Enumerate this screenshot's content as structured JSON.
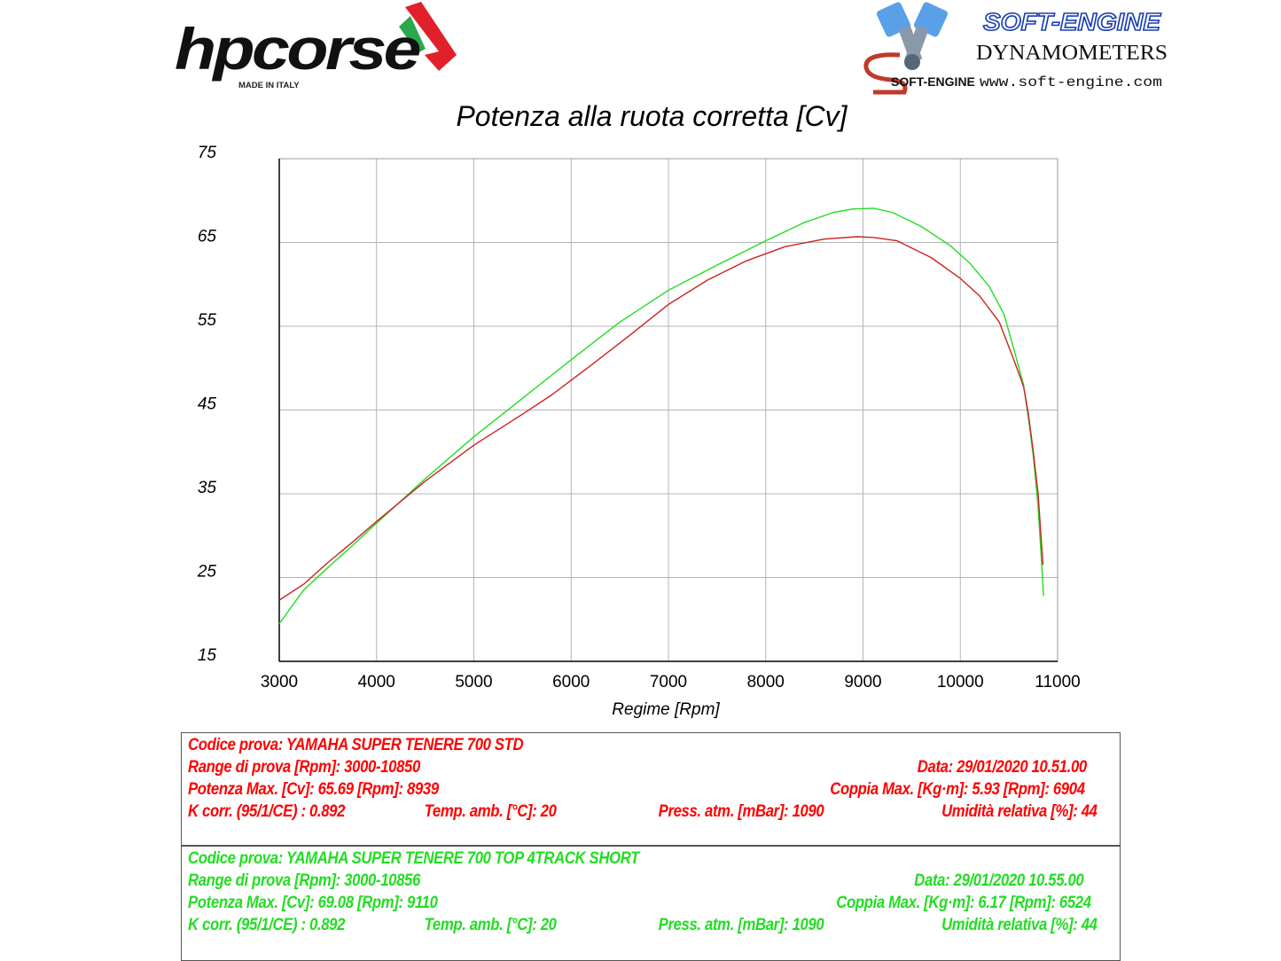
{
  "brand_left": {
    "name": "hpcorse",
    "tagline": "MADE IN ITALY"
  },
  "brand_right": {
    "name": "SOFT-ENGINE",
    "line": "DYNAMOMETERS",
    "mark": "SOFT-ENGINE",
    "url": "www.soft-engine.com"
  },
  "colors": {
    "std": "#cc2222",
    "top": "#22dd22",
    "grid": "#b4b4b4",
    "info_std": "#ff0000",
    "info_top": "#22dd22"
  },
  "chart_data": {
    "type": "line",
    "title": "Potenza alla ruota corretta [Cv]",
    "xlabel": "Regime [Rpm]",
    "ylabel": "",
    "xlim": [
      3000,
      11000
    ],
    "ylim": [
      15,
      75
    ],
    "x_ticks": [
      3000,
      4000,
      5000,
      6000,
      7000,
      8000,
      9000,
      10000,
      11000
    ],
    "y_ticks": [
      75,
      65,
      55,
      45,
      35,
      25,
      15
    ],
    "grid": true,
    "series": [
      {
        "key": "std",
        "x": [
          3000,
          3250,
          3500,
          3750,
          4000,
          4500,
          5000,
          5500,
          5800,
          6200,
          6600,
          7000,
          7400,
          7800,
          8200,
          8600,
          8939,
          9100,
          9350,
          9700,
          10000,
          10200,
          10400,
          10550,
          10650,
          10700,
          10750,
          10800,
          10850
        ],
        "y": [
          22.3,
          24.2,
          26.8,
          29.2,
          31.7,
          36.5,
          40.8,
          44.5,
          46.8,
          50.3,
          53.9,
          57.6,
          60.5,
          62.8,
          64.5,
          65.4,
          65.69,
          65.6,
          65.2,
          63.2,
          60.7,
          58.6,
          55.5,
          51.0,
          47.8,
          44.5,
          40.0,
          35.0,
          26.5
        ]
      },
      {
        "key": "top",
        "x": [
          3000,
          3250,
          3500,
          3750,
          4000,
          4500,
          5000,
          5500,
          6000,
          6500,
          7000,
          7500,
          8000,
          8400,
          8700,
          8900,
          9110,
          9300,
          9600,
          9900,
          10100,
          10300,
          10450,
          10550,
          10650,
          10700,
          10750,
          10800,
          10856
        ],
        "y": [
          19.5,
          23.5,
          26.2,
          28.8,
          31.5,
          36.8,
          41.8,
          46.4,
          51.0,
          55.5,
          59.3,
          62.3,
          65.2,
          67.4,
          68.6,
          69.0,
          69.08,
          68.6,
          66.9,
          64.6,
          62.5,
          59.7,
          56.4,
          52.3,
          48.0,
          44.0,
          39.5,
          33.5,
          22.8
        ]
      }
    ]
  },
  "info": {
    "std": {
      "codice": "Codice prova: YAMAHA SUPER TENERE 700 STD",
      "range": "Range di prova [Rpm]: 3000-10850",
      "data": "Data: 29/01/2020   10.51.00",
      "potenza": "Potenza Max. [Cv]: 65.69   [Rpm]: 8939",
      "coppia": "Coppia Max. [Kg·m]: 5.93   [Rpm]: 6904",
      "kcorr": "K corr. (95/1/CE) : 0.892",
      "temp": "Temp. amb. [°C]: 20",
      "press": "Press. atm. [mBar]: 1090",
      "umid": "Umidità relativa [%]: 44"
    },
    "top": {
      "codice": "Codice prova: YAMAHA SUPER TENERE 700 TOP 4TRACK SHORT",
      "range": "Range di prova [Rpm]: 3000-10856",
      "data": "Data: 29/01/2020   10.55.00",
      "potenza": "Potenza Max. [Cv]: 69.08   [Rpm]: 9110",
      "coppia": "Coppia Max. [Kg·m]: 6.17   [Rpm]: 6524",
      "kcorr": "K corr. (95/1/CE) : 0.892",
      "temp": "Temp. amb. [°C]: 20",
      "press": "Press. atm. [mBar]: 1090",
      "umid": "Umidità relativa [%]: 44"
    }
  }
}
